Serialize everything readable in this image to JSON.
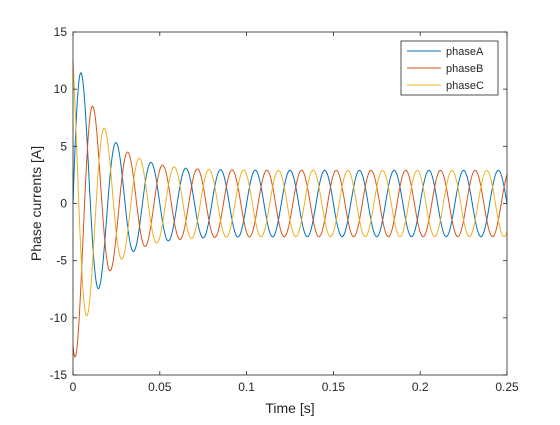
{
  "chart_data": {
    "type": "line",
    "title": "",
    "xlabel": "Time [s]",
    "ylabel": "Phase currents [A]",
    "xlim": [
      0,
      0.25
    ],
    "ylim": [
      -15,
      15
    ],
    "xticks": [
      0,
      0.05,
      0.1,
      0.15,
      0.2,
      0.25
    ],
    "xtick_labels": [
      "0",
      "0.05",
      "0.1",
      "0.15",
      "0.2",
      "0.25"
    ],
    "yticks": [
      -15,
      -10,
      -5,
      0,
      5,
      10,
      15
    ],
    "ytick_labels": [
      "-15",
      "-10",
      "-5",
      "0",
      "5",
      "10",
      "15"
    ],
    "grid": false,
    "legend_position": "top-right",
    "sample_step": 0.0004,
    "signal_model": {
      "frequency_hz": 50,
      "steady_amplitude": 2.9,
      "transient_amplitude": 11.5,
      "transient_decay_s": 0.016
    },
    "series": [
      {
        "name": "phaseA",
        "color": "#0072BD",
        "phase_deg": 0
      },
      {
        "name": "phaseB",
        "color": "#D95319",
        "phase_deg": -120
      },
      {
        "name": "phaseC",
        "color": "#EDB120",
        "phase_deg": 120
      }
    ]
  }
}
